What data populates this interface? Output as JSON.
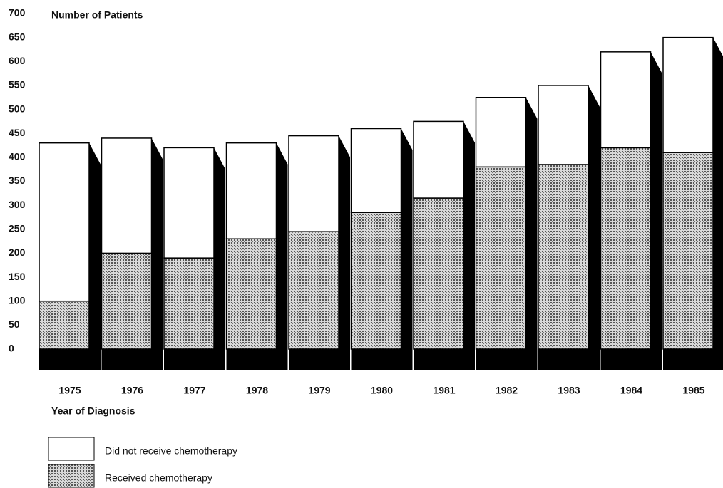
{
  "chart_data": {
    "type": "stacked_bar_3d",
    "title": "Number of Patients",
    "x_label": "Year of Diagnosis",
    "categories": [
      "1975",
      "1976",
      "1977",
      "1978",
      "1979",
      "1980",
      "1981",
      "1982",
      "1983",
      "1984",
      "1985"
    ],
    "series": [
      {
        "name": "Received chemotherapy",
        "color": "#a8a8a8",
        "values": [
          100,
          200,
          190,
          230,
          245,
          285,
          315,
          380,
          385,
          420,
          410
        ]
      },
      {
        "name": "Did not receive chemotherapy",
        "color": "#ffffff",
        "values": [
          330,
          240,
          230,
          200,
          200,
          175,
          160,
          145,
          165,
          200,
          240
        ]
      }
    ],
    "ylim": [
      0,
      700
    ],
    "yticks": [
      0,
      50,
      100,
      150,
      200,
      250,
      300,
      350,
      400,
      450,
      500,
      550,
      600,
      650,
      700
    ],
    "grid": false,
    "legend": "bottom-left"
  }
}
